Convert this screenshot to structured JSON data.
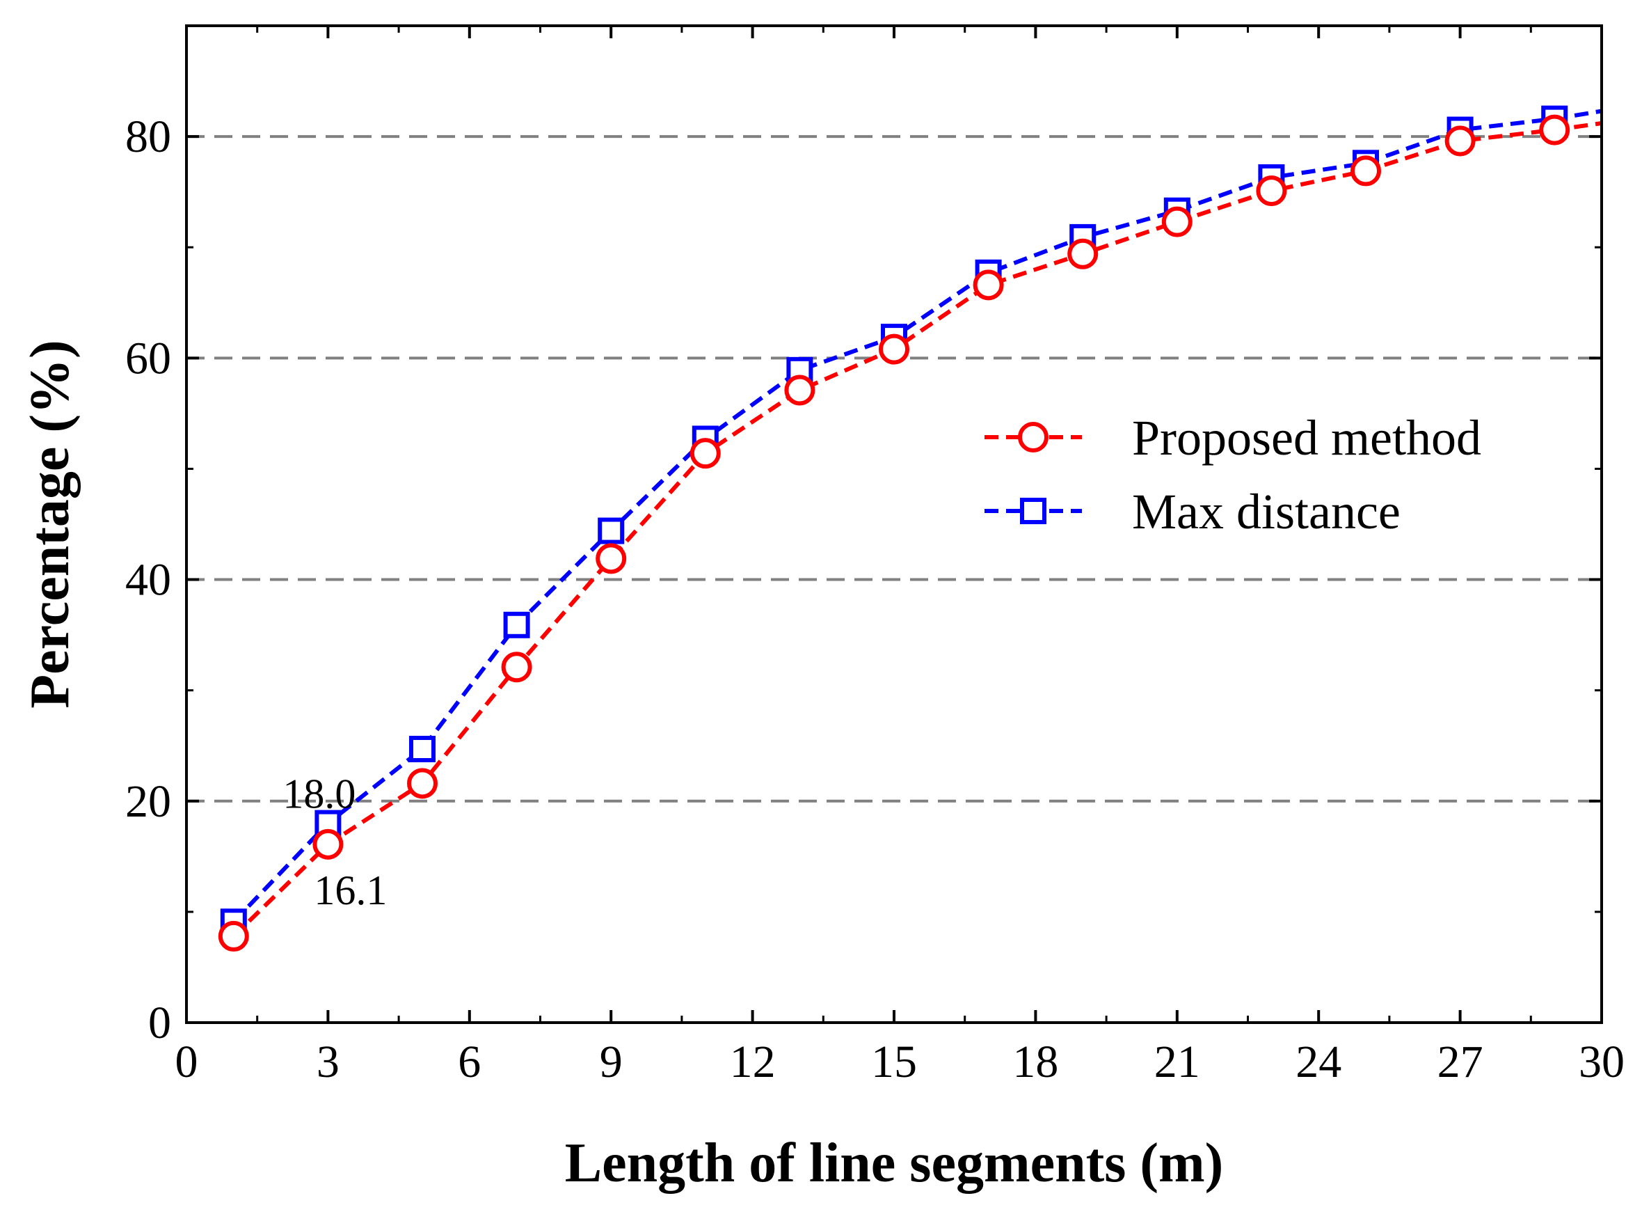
{
  "chart_data": {
    "type": "line",
    "title": "",
    "xlabel": "Length of line segments (m)",
    "ylabel": "Percentage (%)",
    "xlim": [
      0,
      30
    ],
    "ylim": [
      0,
      90
    ],
    "xticks": [
      0,
      3,
      6,
      9,
      12,
      15,
      18,
      21,
      24,
      27,
      30
    ],
    "yticks": [
      0,
      20,
      40,
      60,
      80
    ],
    "grid": "horizontal dashed at 20, 40, 60, 80",
    "legend_position": "center-right",
    "x": [
      1,
      3,
      5,
      7,
      9,
      11,
      13,
      15,
      17,
      19,
      21,
      23,
      25,
      27,
      29,
      30
    ],
    "series": [
      {
        "name": "Proposed method",
        "color": "#ff0000",
        "marker": "circle",
        "values": [
          7.8,
          16.1,
          21.6,
          32.1,
          41.9,
          51.4,
          57.1,
          60.8,
          66.6,
          69.4,
          72.3,
          75.1,
          76.9,
          79.6,
          80.6,
          81.2
        ]
      },
      {
        "name": "Max distance",
        "color": "#0000ff",
        "marker": "square",
        "values": [
          9.1,
          18.0,
          24.7,
          35.9,
          44.4,
          52.7,
          58.9,
          61.9,
          67.7,
          70.9,
          73.3,
          76.3,
          77.6,
          80.6,
          81.6,
          82.3
        ]
      }
    ],
    "annotations": [
      {
        "text": "18.0",
        "x": 3,
        "y": 18.0
      },
      {
        "text": "16.1",
        "x": 3,
        "y": 16.1
      }
    ]
  }
}
